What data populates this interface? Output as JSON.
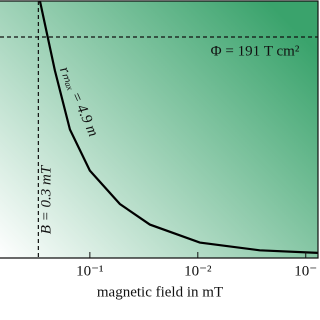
{
  "chart_data": {
    "type": "line",
    "log_x": true,
    "x_reversed": true,
    "x_label": "magnetic field in mT",
    "annotations": {
      "flux": "Φ = 191 T cm²",
      "curve": "rₘₐₓ = 4.9 m",
      "field": "B = 0.3 mT"
    },
    "vline": 0.3,
    "hline": 0.86,
    "xlim": [
      0.68,
      0.00077
    ],
    "ylim": [
      0,
      1
    ],
    "xticks": [
      {
        "value": 0.1,
        "label": "10⁻¹"
      },
      {
        "value": 0.01,
        "label": "10⁻²"
      },
      {
        "value": 0.001,
        "label": "10⁻"
      }
    ],
    "series": [
      {
        "color": "#000000",
        "x": [
          0.29,
          0.211,
          0.153,
          0.1,
          0.0527,
          0.0278,
          0.00958,
          0.00267,
          0.000774
        ],
        "values": [
          1.0,
          0.73,
          0.5,
          0.34,
          0.21,
          0.13,
          0.06,
          0.03,
          0.02
        ]
      }
    ],
    "background_colors": [
      "#ffffff",
      "#3aa36c"
    ]
  }
}
